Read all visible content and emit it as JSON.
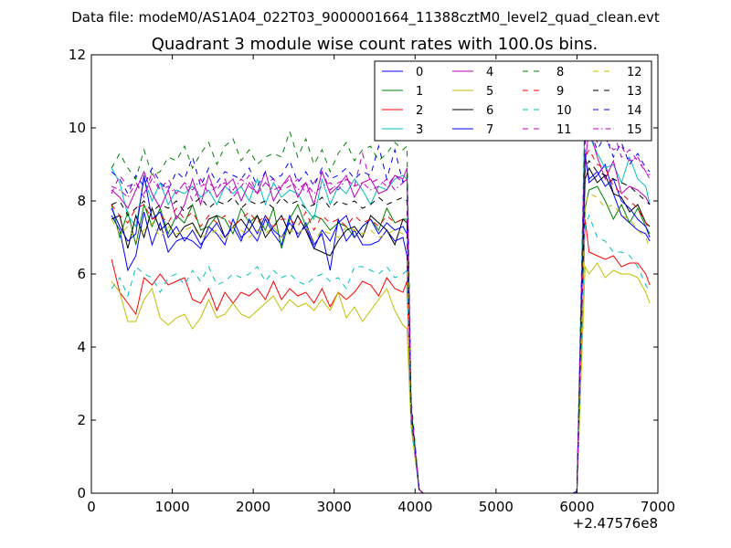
{
  "chart_data": {
    "type": "line",
    "suptitle": "Data file: modeM0/AS1A04_022T03_9000001664_11388cztM0_level2_quad_clean.evt",
    "title": "Quadrant 3 module wise count rates with 100.0s bins.",
    "xlabel": "",
    "ylabel": "",
    "x_offset_label": "+2.47576e8",
    "xlim": [
      0,
      7000
    ],
    "ylim": [
      0,
      12
    ],
    "xticks": [
      0,
      1000,
      2000,
      3000,
      4000,
      5000,
      6000,
      7000
    ],
    "yticks": [
      0,
      2,
      4,
      6,
      8,
      10,
      12
    ],
    "legend_position": "top-right",
    "x": [
      250,
      350,
      450,
      550,
      650,
      750,
      850,
      950,
      1050,
      1150,
      1250,
      1350,
      1450,
      1550,
      1650,
      1750,
      1850,
      1950,
      2050,
      2150,
      2250,
      2350,
      2450,
      2550,
      2650,
      2750,
      2850,
      2950,
      3050,
      3150,
      3250,
      3350,
      3450,
      3550,
      3650,
      3750,
      3850,
      3900,
      3950,
      4050,
      4100,
      4200,
      4500,
      5000,
      5500,
      5950,
      6000,
      6100,
      6150,
      6250,
      6350,
      6450,
      6550,
      6650,
      6750,
      6850,
      6900
    ],
    "series": [
      {
        "name": "0",
        "color": "#0000ff",
        "dash": "solid",
        "values": [
          7.6,
          7.2,
          6.1,
          6.5,
          7.7,
          6.8,
          7.4,
          6.6,
          6.9,
          7.0,
          6.9,
          6.7,
          7.3,
          7.1,
          6.8,
          7.5,
          7.0,
          7.2,
          6.9,
          7.5,
          7.1,
          6.8,
          7.6,
          7.0,
          7.4,
          6.8,
          7.1,
          6.1,
          7.5,
          6.9,
          7.2,
          6.8,
          6.8,
          6.9,
          7.2,
          6.9,
          7.0,
          6.5,
          2.1,
          0.1,
          0,
          0,
          0,
          0,
          0,
          0,
          0.05,
          9.3,
          8.5,
          8.7,
          9.0,
          8.2,
          7.6,
          7.4,
          7.2,
          7.1,
          6.9
        ]
      },
      {
        "name": "1",
        "color": "#008000",
        "dash": "solid",
        "values": [
          7.9,
          7.0,
          7.7,
          6.8,
          7.9,
          7.3,
          7.8,
          7.1,
          7.6,
          7.4,
          7.9,
          7.2,
          7.3,
          7.6,
          7.5,
          7.1,
          7.8,
          7.4,
          7.6,
          7.2,
          7.8,
          6.7,
          7.5,
          7.9,
          7.3,
          7.6,
          7.5,
          7.2,
          7.4,
          7.3,
          7.0,
          7.3,
          7.5,
          7.2,
          7.8,
          7.4,
          7.5,
          7.5,
          2.3,
          0.1,
          0,
          0,
          0,
          0,
          0,
          0,
          0.05,
          7.8,
          8.3,
          8.4,
          8.0,
          7.5,
          7.9,
          7.4,
          7.8,
          7.3,
          7.1
        ]
      },
      {
        "name": "2",
        "color": "#ff0000",
        "dash": "solid",
        "values": [
          6.4,
          5.5,
          5.2,
          4.9,
          5.9,
          5.7,
          6.0,
          5.7,
          5.8,
          5.9,
          5.3,
          5.2,
          5.6,
          5.0,
          5.5,
          5.2,
          5.5,
          5.4,
          5.6,
          5.3,
          5.8,
          5.3,
          5.6,
          5.4,
          5.5,
          5.2,
          5.6,
          5.1,
          5.5,
          5.3,
          5.5,
          5.8,
          5.7,
          5.4,
          5.9,
          5.6,
          5.5,
          5.8,
          2.0,
          0.1,
          0,
          0,
          0,
          0,
          0,
          0,
          0.05,
          7.5,
          6.6,
          6.5,
          6.4,
          6.5,
          6.2,
          6.3,
          6.3,
          6.0,
          5.7
        ]
      },
      {
        "name": "3",
        "color": "#00bfbf",
        "dash": "solid",
        "values": [
          8.9,
          8.5,
          7.6,
          7.3,
          8.6,
          8.0,
          8.5,
          7.9,
          8.3,
          8.2,
          8.4,
          8.1,
          8.3,
          7.9,
          8.4,
          8.2,
          8.4,
          8.0,
          8.6,
          7.9,
          8.5,
          8.1,
          8.3,
          8.2,
          7.8,
          7.5,
          8.6,
          7.9,
          8.4,
          8.2,
          8.6,
          8.3,
          7.9,
          8.4,
          8.3,
          8.6,
          8.7,
          8.6,
          2.4,
          0.1,
          0,
          0,
          0,
          0,
          0,
          0,
          0.05,
          10.6,
          9.8,
          9.3,
          8.9,
          9.0,
          8.5,
          9.2,
          8.6,
          8.4,
          7.9
        ]
      },
      {
        "name": "4",
        "color": "#bf00bf",
        "dash": "solid",
        "values": [
          8.3,
          8.1,
          7.8,
          8.3,
          8.8,
          8.2,
          7.8,
          8.3,
          7.5,
          7.9,
          8.6,
          7.9,
          8.7,
          8.1,
          8.4,
          8.6,
          8.0,
          8.5,
          8.2,
          8.8,
          8.0,
          8.4,
          8.7,
          8.1,
          8.5,
          7.9,
          8.8,
          8.2,
          8.4,
          8.7,
          8.1,
          8.5,
          8.6,
          8.2,
          8.3,
          8.7,
          8.6,
          8.9,
          2.2,
          0.1,
          0,
          0,
          0,
          0,
          0,
          0,
          0.05,
          9.0,
          10.0,
          9.2,
          8.6,
          9.1,
          8.2,
          8.4,
          8.3,
          8.1,
          7.9
        ]
      },
      {
        "name": "5",
        "color": "#bfbf00",
        "dash": "solid",
        "values": [
          5.8,
          5.5,
          4.7,
          4.7,
          5.3,
          5.6,
          4.8,
          4.6,
          4.8,
          4.9,
          4.5,
          4.8,
          5.3,
          4.8,
          4.9,
          5.2,
          4.9,
          4.8,
          5.0,
          5.2,
          5.4,
          5.0,
          5.3,
          5.1,
          5.2,
          5.0,
          5.3,
          5.0,
          5.5,
          4.8,
          5.1,
          4.7,
          5.0,
          5.3,
          5.6,
          5.0,
          4.6,
          4.5,
          1.8,
          0.1,
          0,
          0,
          0,
          0,
          0,
          0,
          0.05,
          6.2,
          6.0,
          6.3,
          5.9,
          6.1,
          6.0,
          6.0,
          5.9,
          5.5,
          5.2
        ]
      },
      {
        "name": "6",
        "color": "#000000",
        "dash": "solid",
        "values": [
          7.5,
          7.6,
          6.7,
          7.6,
          7.0,
          7.8,
          7.2,
          7.4,
          7.0,
          7.3,
          7.4,
          7.0,
          7.5,
          7.6,
          7.0,
          7.3,
          7.5,
          7.2,
          7.6,
          7.0,
          7.3,
          7.6,
          7.1,
          7.6,
          7.2,
          6.7,
          6.6,
          6.5,
          6.9,
          7.2,
          7.3,
          7.0,
          7.6,
          7.4,
          7.2,
          6.8,
          7.5,
          7.4,
          2.1,
          0.1,
          0,
          0,
          0,
          0,
          0,
          0,
          0.05,
          8.6,
          8.9,
          8.5,
          8.7,
          8.2,
          8.1,
          7.7,
          7.9,
          7.4,
          7.3
        ]
      },
      {
        "name": "7",
        "color": "#0000ff",
        "dash": "solid",
        "values": [
          7.8,
          7.3,
          6.9,
          7.1,
          8.7,
          7.5,
          7.7,
          7.0,
          7.3,
          6.9,
          7.2,
          6.8,
          7.1,
          7.4,
          7.0,
          7.3,
          6.9,
          7.5,
          7.1,
          7.6,
          7.2,
          7.0,
          7.4,
          7.1,
          7.3,
          6.7,
          7.2,
          6.9,
          7.4,
          7.6,
          7.0,
          7.3,
          7.5,
          7.1,
          7.4,
          7.2,
          7.3,
          7.1,
          2.2,
          0.1,
          0,
          0,
          0,
          0,
          0,
          0,
          0.05,
          9.2,
          8.6,
          8.8,
          8.4,
          8.6,
          8.0,
          7.8,
          7.5,
          7.3,
          7.0
        ]
      },
      {
        "name": "8",
        "color": "#008000",
        "dash": "dashed",
        "values": [
          8.9,
          9.3,
          8.9,
          8.6,
          9.4,
          8.7,
          8.8,
          9.2,
          9.1,
          9.5,
          8.9,
          9.3,
          9.6,
          9.0,
          9.5,
          9.7,
          9.1,
          9.4,
          9.0,
          9.2,
          9.3,
          9.2,
          9.9,
          9.2,
          9.7,
          9.0,
          9.4,
          8.8,
          9.3,
          9.6,
          9.1,
          9.4,
          9.5,
          9.1,
          9.3,
          9.6,
          9.4,
          9.5,
          2.6,
          0.1,
          0,
          0,
          0,
          0,
          0,
          0,
          0.05,
          10.7,
          11.0,
          10.6,
          10.8,
          9.9,
          10.4,
          9.7,
          10.3,
          9.8,
          10.6
        ]
      },
      {
        "name": "9",
        "color": "#ff0000",
        "dash": "dashed",
        "values": [
          7.9,
          7.6,
          7.4,
          7.8,
          7.9,
          7.5,
          7.6,
          7.4,
          7.8,
          7.5,
          7.7,
          7.3,
          7.6,
          7.4,
          7.6,
          7.3,
          7.5,
          7.7,
          7.4,
          7.6,
          7.3,
          7.5,
          7.5,
          7.3,
          7.7,
          7.2,
          7.6,
          7.4,
          7.5,
          7.3,
          7.6,
          7.4,
          7.5,
          7.3,
          7.6,
          7.4,
          7.5,
          7.5,
          2.2,
          0.1,
          0,
          0,
          0,
          0,
          0,
          0,
          0.05,
          9.2,
          9.4,
          9.0,
          8.9,
          8.4,
          8.2,
          8.0,
          7.8,
          7.4,
          7.2
        ]
      },
      {
        "name": "10",
        "color": "#00bfbf",
        "dash": "dashed",
        "values": [
          5.6,
          5.9,
          5.4,
          6.2,
          6.0,
          5.9,
          5.5,
          5.9,
          6.0,
          5.7,
          6.1,
          5.8,
          6.2,
          5.7,
          5.8,
          6.0,
          5.9,
          6.0,
          6.2,
          5.8,
          6.1,
          5.9,
          6.0,
          5.8,
          5.7,
          5.9,
          6.0,
          5.8,
          5.9,
          5.6,
          6.2,
          6.2,
          6.1,
          6.0,
          6.2,
          5.9,
          6.0,
          6.1,
          1.9,
          0.1,
          0,
          0,
          0,
          0,
          0,
          0,
          0.05,
          7.3,
          7.6,
          7.0,
          6.9,
          6.6,
          6.6,
          6.5,
          6.2,
          5.7,
          5.5
        ]
      },
      {
        "name": "11",
        "color": "#bf00bf",
        "dash": "dashed",
        "values": [
          8.2,
          8.7,
          8.4,
          8.5,
          8.1,
          8.8,
          8.3,
          8.6,
          8.2,
          8.5,
          8.0,
          8.4,
          8.5,
          8.3,
          8.6,
          8.1,
          8.4,
          8.7,
          8.2,
          8.5,
          8.6,
          8.3,
          8.4,
          8.6,
          8.2,
          8.5,
          8.8,
          8.3,
          8.5,
          8.6,
          8.4,
          9.3,
          8.5,
          8.6,
          8.4,
          8.7,
          8.5,
          8.6,
          2.3,
          0.1,
          0,
          0,
          0,
          0,
          0,
          0,
          0.05,
          9.8,
          10.2,
          10.0,
          9.6,
          9.9,
          9.2,
          9.4,
          9.1,
          8.8,
          8.6
        ]
      },
      {
        "name": "12",
        "color": "#bfbf00",
        "dash": "dashed",
        "values": [
          7.5,
          7.1,
          7.3,
          6.9,
          7.2,
          7.4,
          7.0,
          7.3,
          7.1,
          7.2,
          7.3,
          7.0,
          7.1,
          7.2,
          6.9,
          7.3,
          7.2,
          7.0,
          7.2,
          7.1,
          7.3,
          7.0,
          7.2,
          7.1,
          7.3,
          6.9,
          7.2,
          7.1,
          7.0,
          7.3,
          7.2,
          7.1,
          7.2,
          7.0,
          7.1,
          7.2,
          7.1,
          7.0,
          2.0,
          0.1,
          0,
          0,
          0,
          0,
          0,
          0,
          0.05,
          7.9,
          8.2,
          8.1,
          7.8,
          7.9,
          7.6,
          7.5,
          7.2,
          7.0,
          6.7
        ]
      },
      {
        "name": "13",
        "color": "#000000",
        "dash": "dashed",
        "values": [
          7.9,
          8.0,
          7.6,
          7.8,
          8.0,
          7.7,
          7.9,
          7.8,
          8.0,
          7.7,
          7.9,
          8.1,
          7.8,
          8.0,
          7.9,
          8.1,
          7.8,
          8.0,
          7.9,
          8.0,
          7.8,
          8.1,
          7.9,
          8.0,
          7.8,
          7.9,
          8.1,
          7.8,
          8.0,
          7.9,
          8.0,
          7.8,
          7.9,
          8.1,
          7.9,
          8.0,
          8.1,
          8.0,
          2.3,
          0.1,
          0,
          0,
          0,
          0,
          0,
          0,
          0.05,
          8.9,
          9.1,
          8.8,
          8.7,
          8.6,
          8.5,
          8.4,
          8.2,
          8.0,
          7.9
        ]
      },
      {
        "name": "14",
        "color": "#0000ff",
        "dash": "dashed",
        "values": [
          8.8,
          8.6,
          8.2,
          8.7,
          8.4,
          8.9,
          8.5,
          8.3,
          8.8,
          8.6,
          9.2,
          8.4,
          8.9,
          8.5,
          8.8,
          8.7,
          8.6,
          8.9,
          8.4,
          8.8,
          8.6,
          8.7,
          9.1,
          8.5,
          8.8,
          8.4,
          8.9,
          8.6,
          8.7,
          8.9,
          8.6,
          8.8,
          8.7,
          9.5,
          8.6,
          9.4,
          8.5,
          8.7,
          2.4,
          0.1,
          0,
          0,
          0,
          0,
          0,
          0,
          0.05,
          9.6,
          10.0,
          9.4,
          9.8,
          9.2,
          9.6,
          9.0,
          9.3,
          8.9,
          8.8
        ]
      },
      {
        "name": "15",
        "color": "#bf00bf",
        "dash": "dotdash",
        "values": [
          8.4,
          8.3,
          8.1,
          8.5,
          8.2,
          8.6,
          8.3,
          8.4,
          8.2,
          8.5,
          8.3,
          8.6,
          8.2,
          8.4,
          8.5,
          8.3,
          8.6,
          8.4,
          8.2,
          8.5,
          8.3,
          8.4,
          8.6,
          8.3,
          8.5,
          8.2,
          8.4,
          8.5,
          8.3,
          8.6,
          8.4,
          8.5,
          8.3,
          8.4,
          8.6,
          8.3,
          8.5,
          8.6,
          2.3,
          0.1,
          0,
          0,
          0,
          0,
          0,
          0,
          0.05,
          9.9,
          10.1,
          9.6,
          9.7,
          9.4,
          9.5,
          9.1,
          9.2,
          8.8,
          8.7
        ]
      }
    ]
  }
}
